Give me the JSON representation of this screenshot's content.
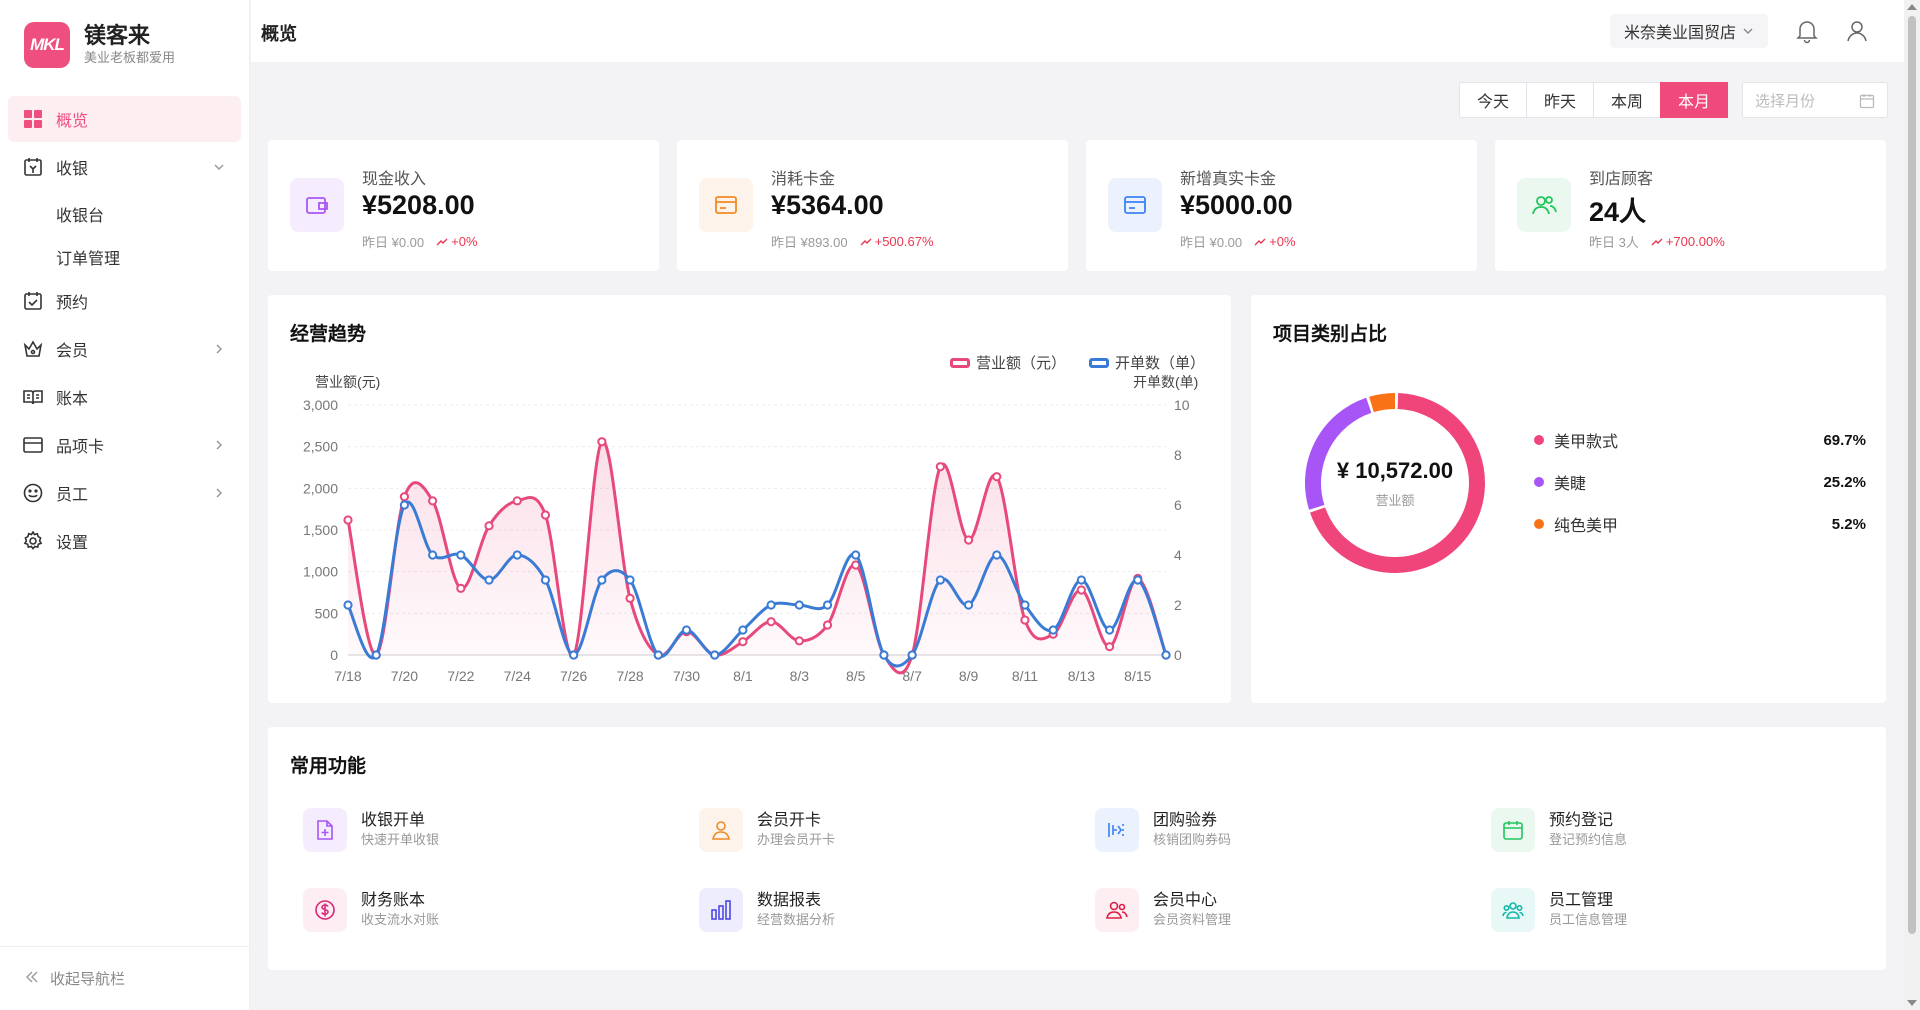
{
  "brand": {
    "name": "镁客来",
    "tagline": "美业老板都爱用",
    "logo_text": "MKL"
  },
  "nav": {
    "items": [
      {
        "label": "概览",
        "icon": "grid-icon"
      },
      {
        "label": "收银",
        "icon": "cashier-icon"
      },
      {
        "label": "收银台"
      },
      {
        "label": "订单管理"
      },
      {
        "label": "预约",
        "icon": "calendar-check-icon"
      },
      {
        "label": "会员",
        "icon": "crown-icon"
      },
      {
        "label": "账本",
        "icon": "book-icon"
      },
      {
        "label": "品项卡",
        "icon": "card-icon"
      },
      {
        "label": "员工",
        "icon": "smile-icon"
      },
      {
        "label": "设置",
        "icon": "gear-icon"
      }
    ],
    "collapse_label": "收起导航栏"
  },
  "header": {
    "title": "概览",
    "store": "米奈美业国贸店"
  },
  "date_filter": {
    "options": [
      "今天",
      "昨天",
      "本周",
      "本月"
    ],
    "active": "本月",
    "month_placeholder": "选择月份"
  },
  "stats": [
    {
      "label": "现金收入",
      "value": "¥5208.00",
      "yesterday": "昨日 ¥0.00",
      "change": "+0%",
      "color": "#a855f7",
      "bg": "#f5edfd",
      "icon": "wallet-icon"
    },
    {
      "label": "消耗卡金",
      "value": "¥5364.00",
      "yesterday": "昨日 ¥893.00",
      "change": "+500.67%",
      "color": "#f08a24",
      "bg": "#fdf3ea",
      "icon": "card-icon"
    },
    {
      "label": "新增真实卡金",
      "value": "¥5000.00",
      "yesterday": "昨日 ¥0.00",
      "change": "+0%",
      "color": "#3b82f6",
      "bg": "#ebf2fd",
      "icon": "card-icon"
    },
    {
      "label": "到店顾客",
      "value": "24人",
      "yesterday": "昨日 3人",
      "change": "+700.00%",
      "color": "#22c55e",
      "bg": "#eaf8ef",
      "icon": "users-icon"
    }
  ],
  "trend": {
    "title": "经营趋势"
  },
  "chart_data": {
    "type": "line",
    "x": [
      "7/18",
      "7/19",
      "7/20",
      "7/21",
      "7/22",
      "7/23",
      "7/24",
      "7/25",
      "7/26",
      "7/27",
      "7/28",
      "7/29",
      "7/30",
      "7/31",
      "8/1",
      "8/2",
      "8/3",
      "8/4",
      "8/5",
      "8/6",
      "8/7",
      "8/8",
      "8/9",
      "8/10",
      "8/11",
      "8/12",
      "8/13",
      "8/14",
      "8/15",
      "8/16"
    ],
    "x_tick_labels": [
      "7/18",
      "7/20",
      "7/22",
      "7/24",
      "7/26",
      "7/28",
      "7/30",
      "8/1",
      "8/3",
      "8/5",
      "8/7",
      "8/9",
      "8/11",
      "8/13",
      "8/15"
    ],
    "series": [
      {
        "name": "营业额（元）",
        "axis": "left",
        "color": "#e8497b",
        "values": [
          1620,
          0,
          1900,
          1850,
          800,
          1550,
          1850,
          1680,
          0,
          2560,
          680,
          0,
          280,
          0,
          160,
          400,
          170,
          360,
          1080,
          0,
          0,
          2260,
          1380,
          2140,
          420,
          250,
          780,
          100,
          920,
          0
        ]
      },
      {
        "name": "开单数（单）",
        "axis": "right",
        "color": "#3a7bd5",
        "values": [
          2,
          0,
          6,
          4,
          4,
          3,
          4,
          3,
          0,
          3,
          3,
          0,
          1,
          0,
          1,
          2,
          2,
          2,
          4,
          0,
          0,
          3,
          2,
          4,
          2,
          1,
          3,
          1,
          3,
          0
        ]
      }
    ],
    "y_left": {
      "label": "营业额(元)",
      "ticks": [
        "0",
        "500",
        "1,000",
        "1,500",
        "2,000",
        "2,500",
        "3,000"
      ],
      "range": [
        0,
        3000
      ]
    },
    "y_right": {
      "label": "开单数(单)",
      "ticks": [
        "0",
        "2",
        "4",
        "6",
        "8",
        "10"
      ],
      "range": [
        0,
        10
      ]
    },
    "legend": "top-right",
    "grid": true
  },
  "category": {
    "title": "项目类别占比",
    "total": "¥ 10,572.00",
    "total_label": "营业额",
    "items": [
      {
        "name": "美甲款式",
        "pct": "69.7%",
        "value": 69.7,
        "color": "#f0457b"
      },
      {
        "name": "美睫",
        "pct": "25.2%",
        "value": 25.2,
        "color": "#a855f7"
      },
      {
        "name": "纯色美甲",
        "pct": "5.2%",
        "value": 5.2,
        "color": "#f97316"
      }
    ]
  },
  "functions": {
    "title": "常用功能",
    "items": [
      {
        "name": "收银开单",
        "desc": "快速开单收银",
        "icon": "file-plus-icon",
        "color": "#a855f7",
        "bg": "#f5edfd"
      },
      {
        "name": "会员开卡",
        "desc": "办理会员开卡",
        "icon": "user-icon",
        "color": "#f08a24",
        "bg": "#fdf3ea"
      },
      {
        "name": "团购验券",
        "desc": "核销团购券码",
        "icon": "ticket-icon",
        "color": "#3b82f6",
        "bg": "#ebf2fd"
      },
      {
        "name": "预约登记",
        "desc": "登记预约信息",
        "icon": "calendar-icon",
        "color": "#22c55e",
        "bg": "#eaf8ef"
      },
      {
        "name": "财务账本",
        "desc": "收支流水对账",
        "icon": "dollar-icon",
        "color": "#db2777",
        "bg": "#fdeef4"
      },
      {
        "name": "数据报表",
        "desc": "经营数据分析",
        "icon": "bar-chart-icon",
        "color": "#4f46e5",
        "bg": "#eeedfd"
      },
      {
        "name": "会员中心",
        "desc": "会员资料管理",
        "icon": "users-icon",
        "color": "#e11d48",
        "bg": "#fdeef1"
      },
      {
        "name": "员工管理",
        "desc": "员工信息管理",
        "icon": "team-icon",
        "color": "#14b8a6",
        "bg": "#e8f8f6"
      }
    ]
  }
}
